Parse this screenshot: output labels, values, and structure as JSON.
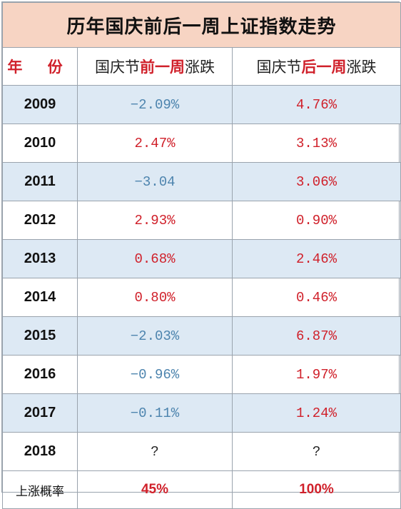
{
  "chart_data": {
    "type": "table",
    "title": "历年国庆前后一周上证指数走势",
    "header": {
      "year": "年 份",
      "before_prefix": "国庆节",
      "before_mid": "前一周",
      "before_suffix": "涨跌",
      "after_prefix": "国庆节",
      "after_mid": "后一周",
      "after_suffix": "涨跌"
    },
    "rows": [
      {
        "year": "2009",
        "before": "−2.09%",
        "after": "4.76%",
        "before_sign": "neg",
        "after_sign": "pos"
      },
      {
        "year": "2010",
        "before": "2.47%",
        "after": "3.13%",
        "before_sign": "pos",
        "after_sign": "pos"
      },
      {
        "year": "2011",
        "before": "−3.04",
        "after": "3.06%",
        "before_sign": "neg",
        "after_sign": "pos"
      },
      {
        "year": "2012",
        "before": "2.93%",
        "after": "0.90%",
        "before_sign": "pos",
        "after_sign": "pos"
      },
      {
        "year": "2013",
        "before": "0.68%",
        "after": "2.46%",
        "before_sign": "pos",
        "after_sign": "pos"
      },
      {
        "year": "2014",
        "before": "0.80%",
        "after": "0.46%",
        "before_sign": "pos",
        "after_sign": "pos"
      },
      {
        "year": "2015",
        "before": "−2.03%",
        "after": "6.87%",
        "before_sign": "neg",
        "after_sign": "pos"
      },
      {
        "year": "2016",
        "before": "−0.96%",
        "after": "1.97%",
        "before_sign": "neg",
        "after_sign": "pos"
      },
      {
        "year": "2017",
        "before": "−0.11%",
        "after": "1.24%",
        "before_sign": "neg",
        "after_sign": "pos"
      },
      {
        "year": "2018",
        "before": "?",
        "after": "?",
        "before_sign": "q",
        "after_sign": "q"
      }
    ],
    "summary": {
      "label": "上涨概率",
      "before": "45%",
      "after": "100%"
    },
    "colors": {
      "positive": "#d0202a",
      "negative": "#4d84ae",
      "title_bg": "#f7d4c3",
      "alt_row_bg": "#dde9f4"
    }
  }
}
